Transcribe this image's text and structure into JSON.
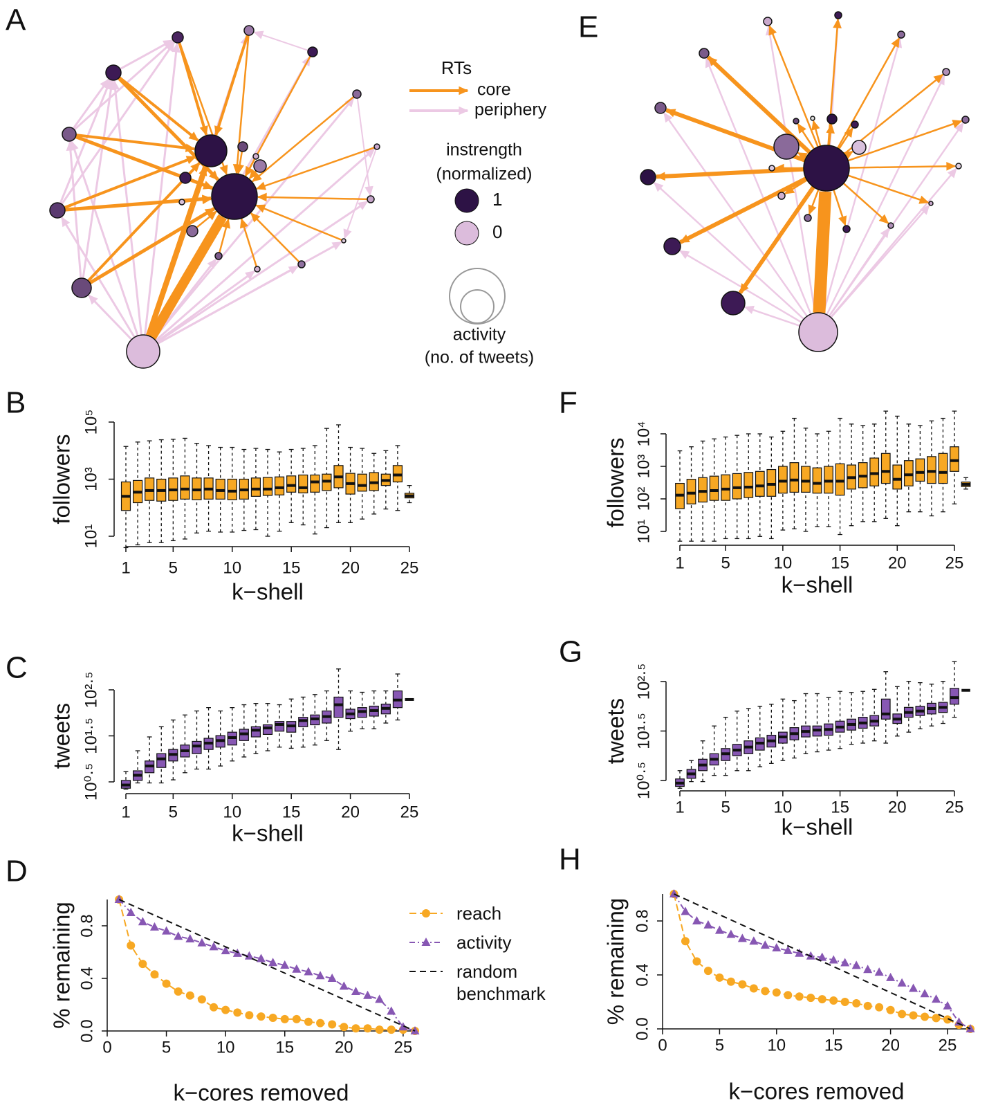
{
  "diagram": {
    "panels": [
      "A",
      "E"
    ],
    "legend": {
      "title": "RTs",
      "items": [
        "core",
        "periphery"
      ],
      "instrength_title": "instrength",
      "instrength_subtitle": "(normalized)",
      "instrength_levels": [
        "1",
        "0"
      ],
      "size_title": "activity",
      "size_subtitle": "(no. of tweets)"
    }
  },
  "chart_data": [
    {
      "type": "box",
      "panel": "B",
      "ylabel": "followers",
      "xlabel": "k−shell",
      "color": "#f7a823",
      "log": true,
      "xlim": [
        1,
        25
      ],
      "xticks": [
        1,
        5,
        10,
        15,
        20,
        25
      ],
      "ylim": [
        10,
        100000
      ],
      "yticks": [
        {
          "value": 10,
          "label": "10¹"
        },
        {
          "value": 1000,
          "label": "10³"
        },
        {
          "value": 100000,
          "label": "10⁵"
        }
      ],
      "x": [
        1,
        2,
        3,
        4,
        5,
        6,
        7,
        8,
        9,
        10,
        11,
        12,
        13,
        14,
        15,
        16,
        17,
        18,
        19,
        20,
        21,
        22,
        23,
        24,
        25
      ],
      "values": [
        [
          4,
          80,
          250,
          800,
          14000
        ],
        [
          5,
          150,
          350,
          900,
          20000
        ],
        [
          6,
          180,
          400,
          1100,
          22000
        ],
        [
          6,
          170,
          400,
          1000,
          24000
        ],
        [
          7,
          180,
          420,
          1100,
          25000
        ],
        [
          8,
          200,
          450,
          1300,
          27000
        ],
        [
          13,
          190,
          420,
          1100,
          18000
        ],
        [
          15,
          200,
          450,
          1100,
          15000
        ],
        [
          14,
          200,
          400,
          1000,
          13000
        ],
        [
          14,
          190,
          380,
          1000,
          13000
        ],
        [
          16,
          200,
          420,
          1000,
          11000
        ],
        [
          17,
          250,
          450,
          1100,
          12000
        ],
        [
          10,
          270,
          450,
          1150,
          11000
        ],
        [
          15,
          280,
          500,
          1200,
          9000
        ],
        [
          30,
          350,
          600,
          1300,
          11000
        ],
        [
          25,
          330,
          500,
          1400,
          12000
        ],
        [
          12,
          350,
          800,
          1400,
          15000
        ],
        [
          20,
          400,
          850,
          1500,
          60000
        ],
        [
          30,
          500,
          1200,
          3000,
          80000
        ],
        [
          30,
          300,
          700,
          1600,
          13000
        ],
        [
          40,
          380,
          600,
          1500,
          12000
        ],
        [
          60,
          400,
          750,
          1700,
          8000
        ],
        [
          90,
          600,
          900,
          1500,
          10000
        ],
        [
          80,
          800,
          1400,
          3000,
          15000
        ],
        [
          150,
          220,
          260,
          320,
          600
        ]
      ]
    },
    {
      "type": "box",
      "panel": "C",
      "ylabel": "tweets",
      "xlabel": "k−shell",
      "color": "#8757b3",
      "log": true,
      "xlim": [
        1,
        25
      ],
      "xticks": [
        1,
        5,
        10,
        15,
        20,
        25
      ],
      "ylim": [
        3.162,
        316.2
      ],
      "yticks": [
        {
          "value": 3.162,
          "label": "10⁰·⁵"
        },
        {
          "value": 31.62,
          "label": "10¹·⁵"
        },
        {
          "value": 316.2,
          "label": "10²·⁵"
        }
      ],
      "x": [
        1,
        2,
        3,
        4,
        5,
        6,
        7,
        8,
        9,
        10,
        11,
        12,
        13,
        14,
        15,
        16,
        17,
        18,
        19,
        20,
        21,
        22,
        23,
        24,
        25
      ],
      "values": [
        [
          2.2,
          2.3,
          2.7,
          3.4,
          5.3
        ],
        [
          3,
          3.4,
          4.4,
          5.5,
          15
        ],
        [
          3,
          5,
          7,
          9,
          30
        ],
        [
          3,
          6.5,
          10,
          13,
          50
        ],
        [
          3.5,
          9,
          12.5,
          16,
          70
        ],
        [
          5,
          11,
          15,
          20,
          90
        ],
        [
          6,
          13,
          19,
          24,
          110
        ],
        [
          6,
          16,
          22,
          28,
          130
        ],
        [
          7,
          18,
          25,
          32,
          110
        ],
        [
          9,
          20,
          29,
          38,
          130
        ],
        [
          11,
          25,
          35,
          44,
          150
        ],
        [
          13,
          30,
          42,
          50,
          160
        ],
        [
          15,
          34,
          47,
          55,
          160
        ],
        [
          18,
          40,
          56,
          65,
          150
        ],
        [
          17,
          38,
          52,
          65,
          200
        ],
        [
          18,
          50,
          68,
          80,
          220
        ],
        [
          20,
          55,
          74,
          90,
          250
        ],
        [
          25,
          60,
          83,
          110,
          300
        ],
        [
          16,
          80,
          150,
          220,
          900
        ],
        [
          40,
          75,
          95,
          120,
          300
        ],
        [
          45,
          80,
          107,
          130,
          280
        ],
        [
          45,
          85,
          112,
          140,
          300
        ],
        [
          60,
          95,
          125,
          155,
          300
        ],
        [
          70,
          130,
          190,
          300,
          700
        ],
        [
          195,
          195,
          195,
          195,
          195
        ]
      ]
    },
    {
      "type": "line",
      "panel": "D",
      "ylabel": "% remaining",
      "xlabel": "k−cores removed",
      "legend": "right",
      "xlim": [
        0,
        26
      ],
      "xticks": [
        0,
        5,
        10,
        15,
        20,
        25
      ],
      "ylim": [
        0,
        1
      ],
      "yticks": [
        {
          "value": 0,
          "label": "0.0"
        },
        0.4,
        0.8
      ],
      "series": [
        {
          "name": "reach",
          "color": "#f7a823",
          "marker": "circle",
          "dash": "10 5",
          "x": [
            1,
            2,
            3,
            4,
            5,
            6,
            7,
            8,
            9,
            10,
            11,
            12,
            13,
            14,
            15,
            16,
            17,
            18,
            19,
            20,
            21,
            22,
            23,
            24,
            25,
            26
          ],
          "values": [
            1,
            0.65,
            0.51,
            0.43,
            0.36,
            0.3,
            0.27,
            0.24,
            0.18,
            0.16,
            0.14,
            0.12,
            0.11,
            0.1,
            0.09,
            0.09,
            0.07,
            0.06,
            0.05,
            0.03,
            0.02,
            0.02,
            0.01,
            0.01,
            0.01,
            0
          ]
        },
        {
          "name": "activity",
          "color": "#8757b3",
          "marker": "triangle",
          "dash": "8 4 2 4",
          "x": [
            1,
            2,
            3,
            4,
            5,
            6,
            7,
            8,
            9,
            10,
            11,
            12,
            13,
            14,
            15,
            16,
            17,
            18,
            19,
            20,
            21,
            22,
            23,
            24,
            25,
            26
          ],
          "values": [
            1,
            0.9,
            0.83,
            0.79,
            0.76,
            0.72,
            0.7,
            0.67,
            0.64,
            0.61,
            0.59,
            0.57,
            0.55,
            0.52,
            0.5,
            0.47,
            0.45,
            0.42,
            0.4,
            0.34,
            0.3,
            0.27,
            0.24,
            0.15,
            0.03,
            0
          ]
        },
        {
          "name": "random benchmark",
          "color": "#111111",
          "marker": "none",
          "dash": "9 6",
          "x": [
            1,
            26
          ],
          "values": [
            1,
            0
          ]
        }
      ]
    },
    {
      "type": "box",
      "panel": "F",
      "ylabel": "followers",
      "xlabel": "k−shell",
      "color": "#f7a823",
      "log": true,
      "xlim": [
        1,
        25
      ],
      "xticks": [
        1,
        5,
        10,
        15,
        20,
        25
      ],
      "ylim": [
        10,
        10000
      ],
      "yticks": [
        {
          "value": 10,
          "label": "10¹"
        },
        {
          "value": 100,
          "label": "10²"
        },
        {
          "value": 1000,
          "label": "10³"
        },
        {
          "value": 10000,
          "label": "10⁴"
        }
      ],
      "x": [
        1,
        2,
        3,
        4,
        5,
        6,
        7,
        8,
        9,
        10,
        11,
        12,
        13,
        14,
        15,
        16,
        17,
        18,
        19,
        20,
        21,
        22,
        23,
        24,
        25,
        26
      ],
      "values": [
        [
          5,
          50,
          130,
          300,
          3000
        ],
        [
          5,
          70,
          150,
          400,
          4000
        ],
        [
          5,
          80,
          170,
          450,
          6000
        ],
        [
          5,
          90,
          180,
          500,
          7000
        ],
        [
          6,
          90,
          200,
          550,
          8000
        ],
        [
          6,
          100,
          220,
          600,
          9000
        ],
        [
          6,
          110,
          230,
          650,
          10000
        ],
        [
          7,
          120,
          250,
          700,
          10000
        ],
        [
          6,
          120,
          280,
          800,
          8000
        ],
        [
          11,
          150,
          350,
          1000,
          12000
        ],
        [
          12,
          160,
          380,
          1300,
          30000
        ],
        [
          10,
          160,
          350,
          1000,
          15000
        ],
        [
          14,
          150,
          300,
          900,
          10000
        ],
        [
          14,
          150,
          350,
          1000,
          12000
        ],
        [
          8,
          130,
          350,
          1200,
          30000
        ],
        [
          15,
          200,
          450,
          1100,
          20000
        ],
        [
          20,
          220,
          500,
          1300,
          18000
        ],
        [
          20,
          250,
          600,
          1800,
          20000
        ],
        [
          25,
          300,
          700,
          2500,
          50000
        ],
        [
          15,
          200,
          400,
          1100,
          35000
        ],
        [
          40,
          250,
          550,
          1500,
          20000
        ],
        [
          40,
          350,
          650,
          1700,
          18000
        ],
        [
          30,
          300,
          700,
          2000,
          25000
        ],
        [
          40,
          300,
          650,
          2500,
          30000
        ],
        [
          70,
          700,
          1500,
          4000,
          50000
        ],
        [
          200,
          240,
          280,
          330,
          450
        ]
      ]
    },
    {
      "type": "box",
      "panel": "G",
      "ylabel": "tweets",
      "xlabel": "k−shell",
      "color": "#8757b3",
      "log": true,
      "xlim": [
        1,
        25
      ],
      "xticks": [
        1,
        5,
        10,
        15,
        20,
        25
      ],
      "ylim": [
        3.162,
        316.2
      ],
      "yticks": [
        {
          "value": 3.162,
          "label": "10⁰·⁵"
        },
        {
          "value": 31.62,
          "label": "10¹·⁵"
        },
        {
          "value": 316.2,
          "label": "10²·⁵"
        }
      ],
      "x": [
        1,
        2,
        3,
        4,
        5,
        6,
        7,
        8,
        9,
        10,
        11,
        12,
        13,
        14,
        15,
        16,
        17,
        18,
        19,
        20,
        21,
        22,
        23,
        24,
        25,
        26
      ],
      "values": [
        [
          2.2,
          2.4,
          2.8,
          3.4,
          5
        ],
        [
          3,
          3.5,
          4.3,
          5.3,
          8
        ],
        [
          3,
          5,
          6.5,
          8.5,
          20
        ],
        [
          4,
          6.5,
          8.5,
          11,
          40
        ],
        [
          4,
          8,
          11,
          14,
          60
        ],
        [
          5,
          10,
          13,
          17,
          80
        ],
        [
          5,
          11,
          15,
          20,
          90
        ],
        [
          6,
          13,
          18,
          23,
          100
        ],
        [
          7,
          15,
          20,
          26,
          110
        ],
        [
          8,
          18,
          24,
          30,
          140
        ],
        [
          9,
          21,
          28,
          37,
          130
        ],
        [
          11,
          24,
          31,
          40,
          180
        ],
        [
          12,
          25,
          33,
          40,
          180
        ],
        [
          13,
          26,
          34,
          44,
          150
        ],
        [
          14,
          30,
          38,
          50,
          200
        ],
        [
          17,
          33,
          43,
          55,
          190
        ],
        [
          18,
          36,
          46,
          60,
          200
        ],
        [
          20,
          40,
          50,
          65,
          220
        ],
        [
          18,
          55,
          70,
          140,
          500
        ],
        [
          25,
          45,
          55,
          70,
          250
        ],
        [
          30,
          60,
          75,
          95,
          320
        ],
        [
          35,
          65,
          80,
          100,
          300
        ],
        [
          40,
          70,
          90,
          115,
          280
        ],
        [
          45,
          75,
          95,
          120,
          320
        ],
        [
          60,
          110,
          150,
          230,
          800
        ],
        [
          210,
          210,
          210,
          210,
          210
        ]
      ]
    },
    {
      "type": "line",
      "panel": "H",
      "ylabel": "% remaining",
      "xlabel": "k−cores removed",
      "xlim": [
        0,
        27
      ],
      "xticks": [
        0,
        5,
        10,
        15,
        20,
        25
      ],
      "ylim": [
        0,
        1
      ],
      "yticks": [
        {
          "value": 0,
          "label": "0.0"
        },
        0.4,
        0.8
      ],
      "series": [
        {
          "color": "#f7a823",
          "marker": "circle",
          "dash": "10 5",
          "x": [
            1,
            2,
            3,
            4,
            5,
            6,
            7,
            8,
            9,
            10,
            11,
            12,
            13,
            14,
            15,
            16,
            17,
            18,
            19,
            20,
            21,
            22,
            23,
            24,
            25,
            26,
            27
          ],
          "values": [
            1,
            0.65,
            0.5,
            0.43,
            0.38,
            0.35,
            0.33,
            0.3,
            0.28,
            0.27,
            0.25,
            0.24,
            0.23,
            0.22,
            0.21,
            0.2,
            0.19,
            0.17,
            0.16,
            0.14,
            0.11,
            0.1,
            0.09,
            0.08,
            0.07,
            0.03,
            0
          ]
        },
        {
          "color": "#8757b3",
          "marker": "triangle",
          "dash": "8 4 2 4",
          "x": [
            1,
            2,
            3,
            4,
            5,
            6,
            7,
            8,
            9,
            10,
            11,
            12,
            13,
            14,
            15,
            16,
            17,
            18,
            19,
            20,
            21,
            22,
            23,
            24,
            25,
            26,
            27
          ],
          "values": [
            1,
            0.87,
            0.8,
            0.77,
            0.73,
            0.7,
            0.67,
            0.65,
            0.62,
            0.6,
            0.58,
            0.56,
            0.54,
            0.53,
            0.51,
            0.49,
            0.47,
            0.44,
            0.42,
            0.38,
            0.34,
            0.3,
            0.26,
            0.22,
            0.17,
            0.05,
            0
          ]
        },
        {
          "color": "#111111",
          "marker": "none",
          "dash": "9 6",
          "x": [
            1,
            27
          ],
          "values": [
            1,
            0
          ]
        }
      ]
    }
  ]
}
